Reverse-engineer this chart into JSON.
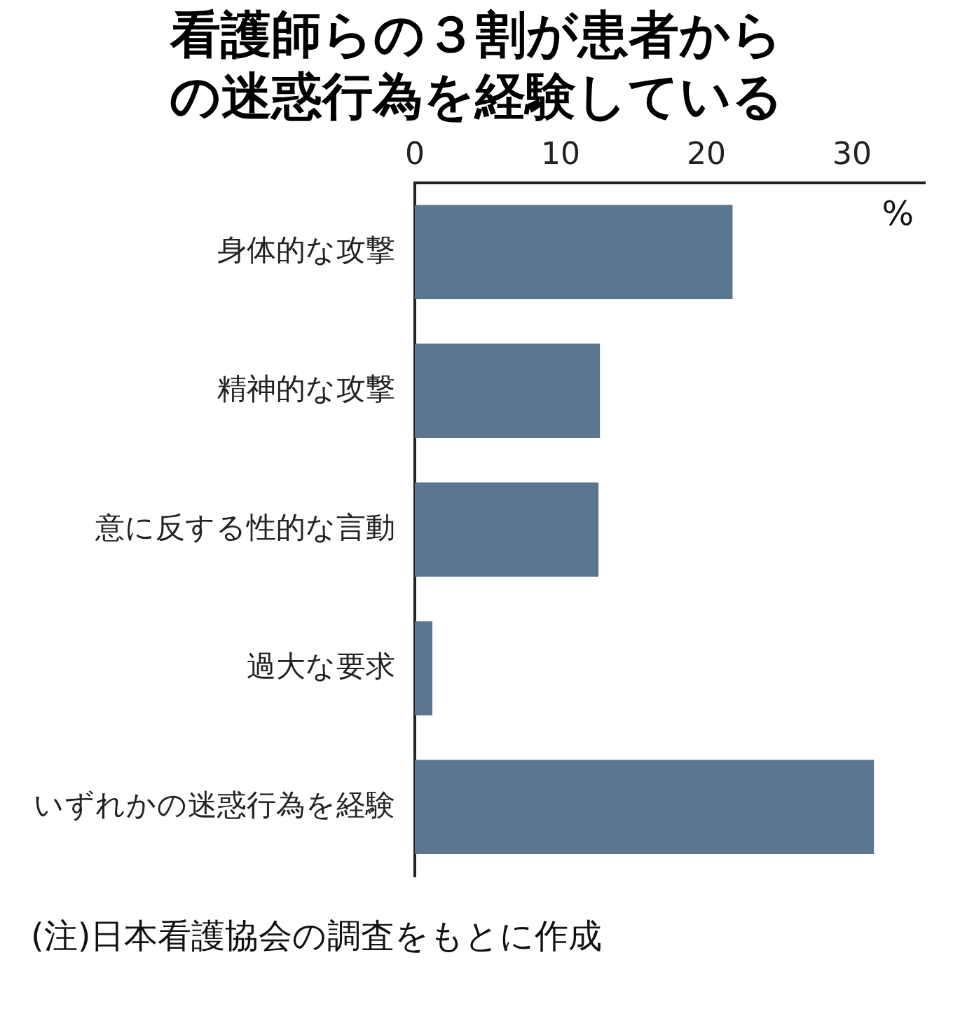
{
  "chart_data": {
    "type": "bar",
    "orientation": "horizontal",
    "title": "看護師らの３割が患者からの迷惑行為を経験している",
    "xlabel": "%",
    "categories": [
      "身体的な攻撃",
      "精神的な攻撃",
      "意に反する性的な言動",
      "過大な要求",
      "いずれかの迷惑行為を経験"
    ],
    "values": [
      21.8,
      12.7,
      12.6,
      1.2,
      31.5
    ],
    "color": "#5b7690",
    "xlim": [
      0,
      35
    ],
    "xticks": [
      0,
      10,
      20,
      30
    ],
    "grid": false,
    "legend": false,
    "annotations": [
      "(注)日本看護協会の調査をもとに作成"
    ]
  }
}
